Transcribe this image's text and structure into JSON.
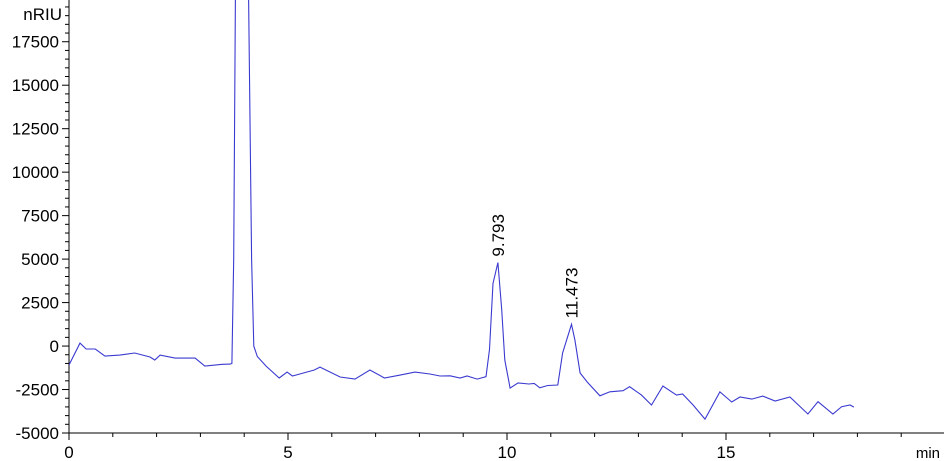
{
  "chart_data": {
    "type": "line",
    "title": "",
    "xlabel": "min",
    "ylabel": "nRIU",
    "xlim": [
      0,
      20
    ],
    "ylim": [
      -5000,
      19900
    ],
    "x_ticks": [
      0,
      5,
      10,
      15
    ],
    "x_minor_step": 1,
    "y_ticks": [
      -5000,
      -2500,
      0,
      2500,
      5000,
      7500,
      10000,
      12500,
      15000,
      17500
    ],
    "y_minor_step": 500,
    "grid": false,
    "line_color": "#3a3ad0",
    "series": [
      {
        "x": [
          0,
          0.25,
          0.39,
          0.6,
          0.82,
          1.16,
          1.5,
          1.85,
          1.96,
          2.08,
          2.42,
          2.88,
          3.1,
          3.5,
          3.68,
          3.72,
          3.76,
          3.8,
          3.95,
          4.1,
          4.17,
          4.22,
          4.3,
          4.5,
          4.8,
          4.98,
          5.1,
          5.27,
          5.6,
          5.73,
          6.19,
          6.53,
          6.87,
          7.2,
          7.56,
          7.9,
          8.24,
          8.47,
          8.7,
          8.93,
          9.09,
          9.32,
          9.52,
          9.6,
          9.68,
          9.793,
          9.88,
          9.95,
          10.07,
          10.25,
          10.5,
          10.62,
          10.75,
          10.93,
          11.16,
          11.27,
          11.473,
          11.55,
          11.67,
          11.83,
          12.12,
          12.35,
          12.65,
          12.8,
          13.07,
          13.3,
          13.56,
          13.87,
          14.01,
          14.25,
          14.52,
          14.86,
          15.13,
          15.32,
          15.59,
          15.84,
          16.12,
          16.46,
          16.87,
          17.1,
          17.44,
          17.64,
          17.83,
          17.92
        ],
        "y": [
          -1090,
          170,
          -170,
          -170,
          -575,
          -520,
          -400,
          -630,
          -800,
          -520,
          -690,
          -690,
          -1150,
          -1050,
          -1035,
          -1000,
          5000,
          20000,
          40000,
          20000,
          5000,
          0,
          -600,
          -1150,
          -1840,
          -1500,
          -1720,
          -1610,
          -1380,
          -1210,
          -1780,
          -1900,
          -1380,
          -1840,
          -1670,
          -1500,
          -1610,
          -1725,
          -1710,
          -1840,
          -1725,
          -1900,
          -1760,
          -200,
          3600,
          4800,
          2100,
          -800,
          -2420,
          -2120,
          -2180,
          -2150,
          -2400,
          -2270,
          -2240,
          -400,
          1250,
          350,
          -1550,
          -2070,
          -2860,
          -2630,
          -2570,
          -2340,
          -2820,
          -3390,
          -2300,
          -2820,
          -2760,
          -3390,
          -4200,
          -2630,
          -3220,
          -2930,
          -3050,
          -2880,
          -3160,
          -2930,
          -3910,
          -3200,
          -3910,
          -3490,
          -3390,
          -3510
        ]
      }
    ],
    "annotations": [
      {
        "text": "9.793",
        "x": 9.793,
        "y": 4800
      },
      {
        "text": "11.473",
        "x": 11.473,
        "y": 1250
      }
    ]
  }
}
